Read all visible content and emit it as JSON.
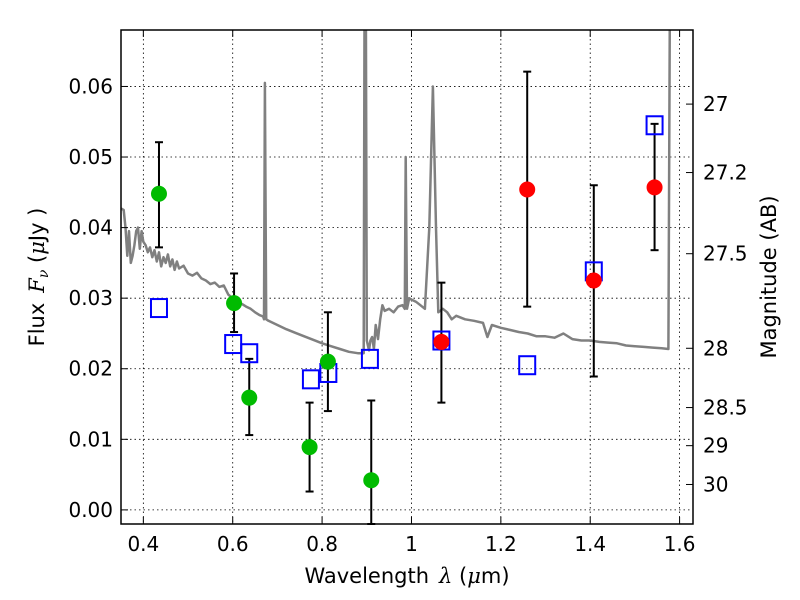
{
  "chart_data": {
    "type": "scatter",
    "xlabel": {
      "prefix": "Wavelength",
      "symbol": "λ",
      "unit_open": " (",
      "unit_mu": "μ",
      "unit_rest": "m)"
    },
    "ylabel": {
      "prefix": "Flux",
      "symbol": "F",
      "subscript": "ν",
      "unit_open": " (",
      "unit_mu": "μ",
      "unit_rest": "Jy )"
    },
    "y2label": "Magnitude (AB)",
    "xlim": [
      0.35,
      1.63
    ],
    "ylim": [
      -0.002,
      0.068
    ],
    "xticks": [
      0.4,
      0.6,
      0.8,
      1.0,
      1.2,
      1.4,
      1.6
    ],
    "xtick_labels": [
      "0.4",
      "0.6",
      "0.8",
      "1",
      "1.2",
      "1.4",
      "1.6"
    ],
    "yticks": [
      0.0,
      0.01,
      0.02,
      0.03,
      0.04,
      0.05,
      0.06
    ],
    "ytick_labels": [
      "0.00",
      "0.01",
      "0.02",
      "0.03",
      "0.04",
      "0.05",
      "0.06"
    ],
    "mag_ticks": [
      {
        "label": "27",
        "flux": 0.0575
      },
      {
        "label": "27.2",
        "flux": 0.0478
      },
      {
        "label": "27.5",
        "flux": 0.0363
      },
      {
        "label": "28",
        "flux": 0.0229
      },
      {
        "label": "28.5",
        "flux": 0.0145
      },
      {
        "label": "29",
        "flux": 0.0091
      },
      {
        "label": "30",
        "flux": 0.0036
      }
    ],
    "grid": true,
    "colors": {
      "green": "#00bb00",
      "red": "#ff0000",
      "model_square": "#0000ff",
      "template": "#808080",
      "errorbar": "#000000"
    },
    "observed_green": [
      {
        "x": 0.435,
        "y": 0.0448,
        "ylo": 0.0372,
        "yhi": 0.0521
      },
      {
        "x": 0.603,
        "y": 0.0293,
        "ylo": 0.0252,
        "yhi": 0.0335
      },
      {
        "x": 0.637,
        "y": 0.0159,
        "ylo": 0.0106,
        "yhi": 0.0214
      },
      {
        "x": 0.772,
        "y": 0.0089,
        "ylo": 0.0026,
        "yhi": 0.0152
      },
      {
        "x": 0.813,
        "y": 0.021,
        "ylo": 0.014,
        "yhi": 0.028
      },
      {
        "x": 0.91,
        "y": 0.0042,
        "ylo": -0.002,
        "yhi": 0.0155
      }
    ],
    "observed_red": [
      {
        "x": 1.067,
        "y": 0.0238,
        "ylo": 0.0152,
        "yhi": 0.0322
      },
      {
        "x": 1.259,
        "y": 0.0454,
        "ylo": 0.0288,
        "yhi": 0.0621
      },
      {
        "x": 1.408,
        "y": 0.0325,
        "ylo": 0.0189,
        "yhi": 0.046
      },
      {
        "x": 1.544,
        "y": 0.0457,
        "ylo": 0.0368,
        "yhi": 0.0547
      }
    ],
    "model_photometry": [
      {
        "x": 0.435,
        "y": 0.0286
      },
      {
        "x": 0.601,
        "y": 0.0235
      },
      {
        "x": 0.637,
        "y": 0.0222
      },
      {
        "x": 0.775,
        "y": 0.0185
      },
      {
        "x": 0.814,
        "y": 0.0194
      },
      {
        "x": 0.907,
        "y": 0.0214
      },
      {
        "x": 1.067,
        "y": 0.024
      },
      {
        "x": 1.259,
        "y": 0.0205
      },
      {
        "x": 1.408,
        "y": 0.0338
      },
      {
        "x": 1.544,
        "y": 0.0545
      }
    ],
    "template_spectrum": [
      [
        0.35,
        0.0427
      ],
      [
        0.356,
        0.0425
      ],
      [
        0.36,
        0.04
      ],
      [
        0.364,
        0.036
      ],
      [
        0.368,
        0.0395
      ],
      [
        0.372,
        0.035
      ],
      [
        0.376,
        0.036
      ],
      [
        0.38,
        0.0375
      ],
      [
        0.384,
        0.0395
      ],
      [
        0.388,
        0.04
      ],
      [
        0.392,
        0.037
      ],
      [
        0.396,
        0.0395
      ],
      [
        0.4,
        0.038
      ],
      [
        0.405,
        0.0375
      ],
      [
        0.41,
        0.0365
      ],
      [
        0.415,
        0.0372
      ],
      [
        0.42,
        0.0358
      ],
      [
        0.425,
        0.0368
      ],
      [
        0.43,
        0.0352
      ],
      [
        0.435,
        0.0365
      ],
      [
        0.44,
        0.0345
      ],
      [
        0.445,
        0.0358
      ],
      [
        0.45,
        0.035
      ],
      [
        0.455,
        0.0362
      ],
      [
        0.46,
        0.0345
      ],
      [
        0.465,
        0.0355
      ],
      [
        0.47,
        0.034
      ],
      [
        0.475,
        0.0352
      ],
      [
        0.48,
        0.0342
      ],
      [
        0.49,
        0.0346
      ],
      [
        0.5,
        0.0335
      ],
      [
        0.51,
        0.0332
      ],
      [
        0.52,
        0.0336
      ],
      [
        0.53,
        0.0328
      ],
      [
        0.54,
        0.0325
      ],
      [
        0.55,
        0.032
      ],
      [
        0.56,
        0.0322
      ],
      [
        0.57,
        0.0316
      ],
      [
        0.58,
        0.0318
      ],
      [
        0.59,
        0.0305
      ],
      [
        0.6,
        0.03
      ],
      [
        0.61,
        0.0296
      ],
      [
        0.62,
        0.0292
      ],
      [
        0.63,
        0.0288
      ],
      [
        0.64,
        0.0285
      ],
      [
        0.65,
        0.028
      ],
      [
        0.66,
        0.0276
      ],
      [
        0.668,
        0.0274
      ],
      [
        0.67,
        0.027
      ],
      [
        0.672,
        0.0605
      ],
      [
        0.675,
        0.027
      ],
      [
        0.68,
        0.0268
      ],
      [
        0.7,
        0.0262
      ],
      [
        0.72,
        0.0256
      ],
      [
        0.74,
        0.0251
      ],
      [
        0.76,
        0.0246
      ],
      [
        0.78,
        0.0241
      ],
      [
        0.8,
        0.0236
      ],
      [
        0.82,
        0.0232
      ],
      [
        0.84,
        0.0228
      ],
      [
        0.86,
        0.0224
      ],
      [
        0.88,
        0.0222
      ],
      [
        0.893,
        0.0222
      ],
      [
        0.895,
        0.07
      ],
      [
        0.898,
        0.07
      ],
      [
        0.9,
        0.024
      ],
      [
        0.905,
        0.0226
      ],
      [
        0.908,
        0.024
      ],
      [
        0.912,
        0.0245
      ],
      [
        0.916,
        0.0228
      ],
      [
        0.92,
        0.0262
      ],
      [
        0.925,
        0.0242
      ],
      [
        0.93,
        0.027
      ],
      [
        0.935,
        0.029
      ],
      [
        0.94,
        0.0282
      ],
      [
        0.95,
        0.0285
      ],
      [
        0.96,
        0.028
      ],
      [
        0.97,
        0.0288
      ],
      [
        0.98,
        0.029
      ],
      [
        0.985,
        0.0285
      ],
      [
        0.987,
        0.05
      ],
      [
        0.99,
        0.0285
      ],
      [
        0.995,
        0.03
      ],
      [
        1.0,
        0.0298
      ],
      [
        1.01,
        0.0295
      ],
      [
        1.02,
        0.029
      ],
      [
        1.03,
        0.0285
      ],
      [
        1.04,
        0.04
      ],
      [
        1.048,
        0.06
      ],
      [
        1.055,
        0.04
      ],
      [
        1.06,
        0.028
      ],
      [
        1.07,
        0.0285
      ],
      [
        1.08,
        0.028
      ],
      [
        1.09,
        0.027
      ],
      [
        1.1,
        0.0275
      ],
      [
        1.12,
        0.027
      ],
      [
        1.14,
        0.0268
      ],
      [
        1.16,
        0.0265
      ],
      [
        1.17,
        0.0245
      ],
      [
        1.18,
        0.0262
      ],
      [
        1.2,
        0.0258
      ],
      [
        1.22,
        0.0255
      ],
      [
        1.24,
        0.0252
      ],
      [
        1.26,
        0.025
      ],
      [
        1.28,
        0.0246
      ],
      [
        1.3,
        0.0246
      ],
      [
        1.32,
        0.0244
      ],
      [
        1.34,
        0.025
      ],
      [
        1.36,
        0.0242
      ],
      [
        1.38,
        0.024
      ],
      [
        1.4,
        0.024
      ],
      [
        1.42,
        0.0238
      ],
      [
        1.44,
        0.0237
      ],
      [
        1.46,
        0.0236
      ],
      [
        1.48,
        0.0233
      ],
      [
        1.5,
        0.0232
      ],
      [
        1.52,
        0.0231
      ],
      [
        1.54,
        0.023
      ],
      [
        1.56,
        0.0229
      ],
      [
        1.575,
        0.0228
      ],
      [
        1.578,
        0.07
      ],
      [
        1.583,
        0.07
      ],
      [
        1.586,
        0.07
      ],
      [
        1.59,
        0.07
      ]
    ]
  }
}
